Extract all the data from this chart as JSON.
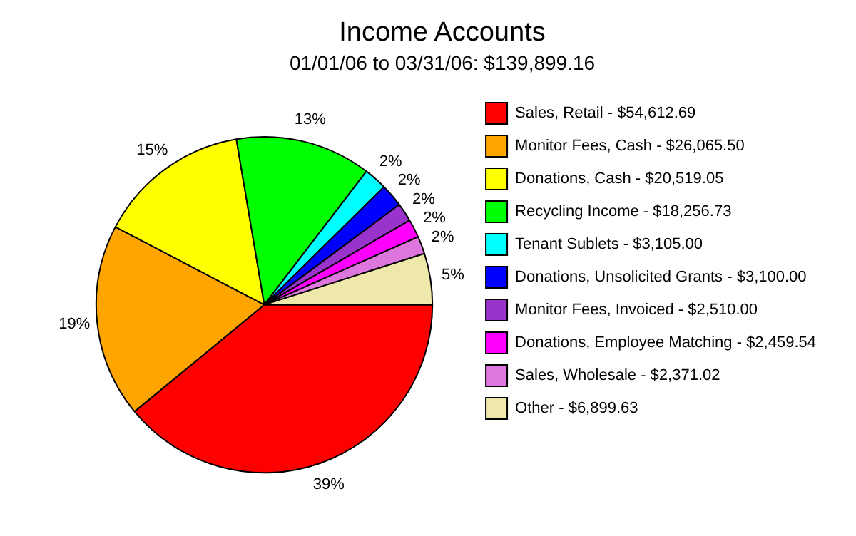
{
  "chart_data": {
    "type": "pie",
    "title": "Income Accounts",
    "subtitle": "01/01/06 to 03/31/06: $139,899.16",
    "categories": [
      "Sales, Retail - $54,612.69",
      "Monitor Fees, Cash - $26,065.50",
      "Donations, Cash - $20,519.05",
      "Recycling Income - $18,256.73",
      "Tenant Sublets - $3,105.00",
      "Donations, Unsolicited Grants - $3,100.00",
      "Monitor Fees, Invoiced - $2,510.00",
      "Donations, Employee Matching - $2,459.54",
      "Sales, Wholesale - $2,371.02",
      "Other - $6,899.63"
    ],
    "values": [
      39.04,
      18.63,
      14.67,
      13.05,
      2.22,
      2.22,
      1.79,
      1.76,
      1.69,
      4.93
    ],
    "colors": [
      "#ff0000",
      "#ffa500",
      "#ffff00",
      "#00ff00",
      "#00ffff",
      "#0000ff",
      "#9933cc",
      "#ff00ff",
      "#dd77dd",
      "#eee8aa"
    ],
    "value_labels": [
      "39%",
      "19%",
      "15%",
      "13%",
      "2%",
      "2%",
      "2%",
      "2%",
      "2%",
      "5%"
    ],
    "legend": "right"
  }
}
